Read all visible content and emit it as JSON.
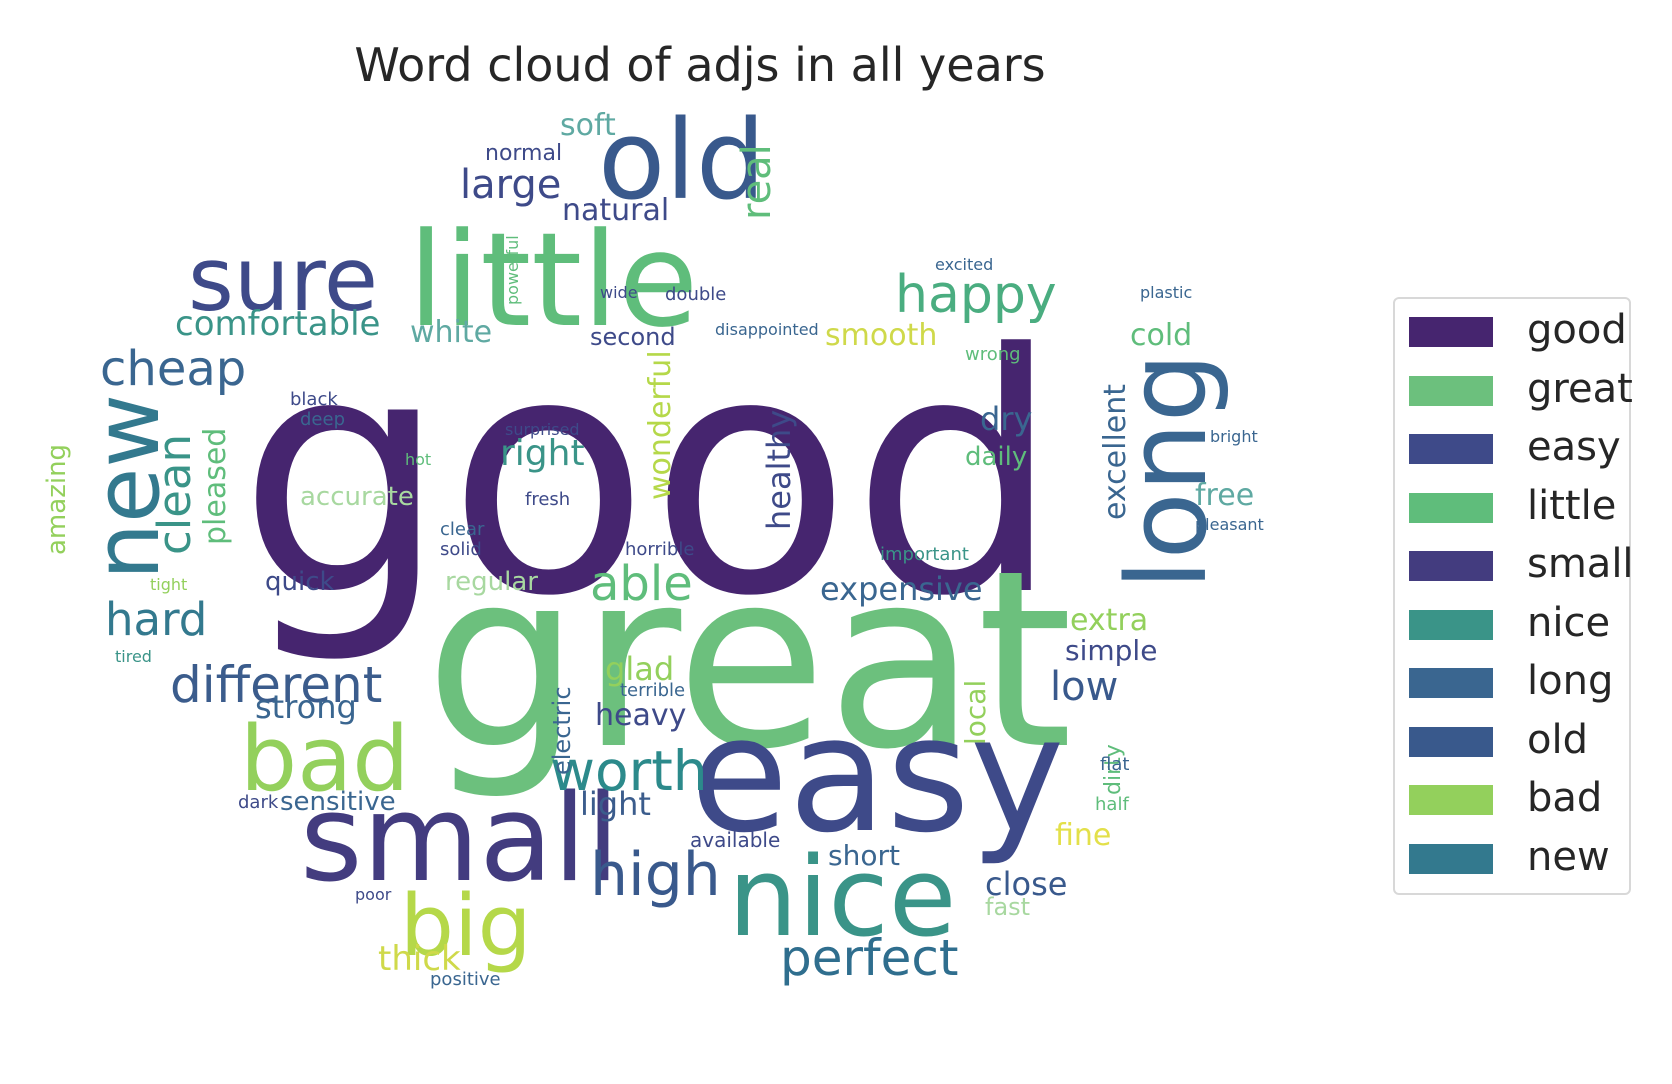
{
  "title": "Word cloud of adjs in all years",
  "legend": [
    {
      "label": "good",
      "color": "#46256f"
    },
    {
      "label": "great",
      "color": "#6cc07d"
    },
    {
      "label": "easy",
      "color": "#3e4a89"
    },
    {
      "label": "little",
      "color": "#5fbd7b"
    },
    {
      "label": "small",
      "color": "#433c7f"
    },
    {
      "label": "nice",
      "color": "#3a9488"
    },
    {
      "label": "long",
      "color": "#3a6690"
    },
    {
      "label": "old",
      "color": "#39598c"
    },
    {
      "label": "bad",
      "color": "#93d05c"
    },
    {
      "label": "new",
      "color": "#33798e"
    }
  ],
  "words": [
    {
      "text": "good",
      "color": "#46256f"
    },
    {
      "text": "great",
      "color": "#6cc07d"
    },
    {
      "text": "easy",
      "color": "#3e4a89"
    },
    {
      "text": "little",
      "color": "#5fbd7b"
    },
    {
      "text": "small",
      "color": "#433c7f"
    },
    {
      "text": "nice",
      "color": "#3a9488"
    },
    {
      "text": "long",
      "color": "#3a6690"
    },
    {
      "text": "old",
      "color": "#39598c"
    },
    {
      "text": "bad",
      "color": "#93d05c"
    },
    {
      "text": "new",
      "color": "#33798e"
    },
    {
      "text": "sure",
      "color": "#3e4a89"
    },
    {
      "text": "big",
      "color": "#b5d849"
    },
    {
      "text": "perfect",
      "color": "#2f6e8e"
    },
    {
      "text": "high",
      "color": "#39598c"
    },
    {
      "text": "different",
      "color": "#3b5c8c"
    },
    {
      "text": "worth",
      "color": "#2c8a8b"
    },
    {
      "text": "happy",
      "color": "#4aad80"
    },
    {
      "text": "cheap",
      "color": "#3a6690"
    },
    {
      "text": "hard",
      "color": "#33798e"
    },
    {
      "text": "able",
      "color": "#5fbd7b"
    },
    {
      "text": "large",
      "color": "#3e4a89"
    },
    {
      "text": "comfortable",
      "color": "#3a9488"
    },
    {
      "text": "clean",
      "color": "#3a9488"
    },
    {
      "text": "expensive",
      "color": "#3a6690"
    },
    {
      "text": "close",
      "color": "#39598c"
    },
    {
      "text": "light",
      "color": "#3b5c8c"
    },
    {
      "text": "simple",
      "color": "#3e4a89"
    },
    {
      "text": "low",
      "color": "#39598c"
    },
    {
      "text": "short",
      "color": "#3a6690"
    },
    {
      "text": "soft",
      "color": "#5fa9a2"
    },
    {
      "text": "normal",
      "color": "#3e4a89"
    },
    {
      "text": "natural",
      "color": "#3e4a89"
    },
    {
      "text": "real",
      "color": "#5fbd7b"
    },
    {
      "text": "white",
      "color": "#5fa9a2"
    },
    {
      "text": "smooth",
      "color": "#cfd94a"
    },
    {
      "text": "cold",
      "color": "#5fbd7b"
    },
    {
      "text": "excellent",
      "color": "#3a6690"
    },
    {
      "text": "free",
      "color": "#5fa9a2"
    },
    {
      "text": "dry",
      "color": "#3a6690"
    },
    {
      "text": "daily",
      "color": "#5fbd7b"
    },
    {
      "text": "healthy",
      "color": "#3e4a89"
    },
    {
      "text": "wonderful",
      "color": "#b5d849"
    },
    {
      "text": "right",
      "color": "#3a9488"
    },
    {
      "text": "pleased",
      "color": "#5fbd7b"
    },
    {
      "text": "amazing",
      "color": "#93d05c"
    },
    {
      "text": "accurate",
      "color": "#a8d8a0"
    },
    {
      "text": "quick",
      "color": "#3e4a89"
    },
    {
      "text": "strong",
      "color": "#3a6690"
    },
    {
      "text": "glad",
      "color": "#93d05c"
    },
    {
      "text": "heavy",
      "color": "#3e4a89"
    },
    {
      "text": "extra",
      "color": "#93d05c"
    },
    {
      "text": "local",
      "color": "#93d05c"
    },
    {
      "text": "sensitive",
      "color": "#3a6690"
    },
    {
      "text": "thick",
      "color": "#cfd94a"
    },
    {
      "text": "fine",
      "color": "#e3e04a"
    },
    {
      "text": "fast",
      "color": "#a8d8a0"
    },
    {
      "text": "second",
      "color": "#3e4a89"
    },
    {
      "text": "regular",
      "color": "#a8d8a0"
    },
    {
      "text": "electric",
      "color": "#3a6690"
    },
    {
      "text": "dark",
      "color": "#3e4a89"
    },
    {
      "text": "available",
      "color": "#3e4a89"
    },
    {
      "text": "positive",
      "color": "#3a6690"
    },
    {
      "text": "dirty",
      "color": "#5fbd7b"
    },
    {
      "text": "terrible",
      "color": "#3a6690"
    },
    {
      "text": "horrible",
      "color": "#3e4a89"
    },
    {
      "text": "important",
      "color": "#3a9488"
    },
    {
      "text": "solid",
      "color": "#3e4a89"
    },
    {
      "text": "clear",
      "color": "#3a6690"
    },
    {
      "text": "fresh",
      "color": "#3e4a89"
    },
    {
      "text": "deep",
      "color": "#3a6690"
    },
    {
      "text": "black",
      "color": "#3e4a89"
    },
    {
      "text": "poor",
      "color": "#3e4a89"
    },
    {
      "text": "half",
      "color": "#5fbd7b"
    },
    {
      "text": "flat",
      "color": "#3a6690"
    },
    {
      "text": "plastic",
      "color": "#3a6690"
    },
    {
      "text": "pleasant",
      "color": "#3a6690"
    },
    {
      "text": "bright",
      "color": "#3a6690"
    },
    {
      "text": "wrong",
      "color": "#5fbd7b"
    },
    {
      "text": "double",
      "color": "#3e4a89"
    },
    {
      "text": "powerful",
      "color": "#5fbd7b"
    },
    {
      "text": "wide",
      "color": "#3e4a89"
    },
    {
      "text": "disappointed",
      "color": "#3a6690"
    },
    {
      "text": "excited",
      "color": "#3a6690"
    },
    {
      "text": "surprised",
      "color": "#3e4a89"
    },
    {
      "text": "hot",
      "color": "#5fbd7b"
    },
    {
      "text": "tight",
      "color": "#93d05c"
    },
    {
      "text": "tired",
      "color": "#3a9488"
    }
  ]
}
